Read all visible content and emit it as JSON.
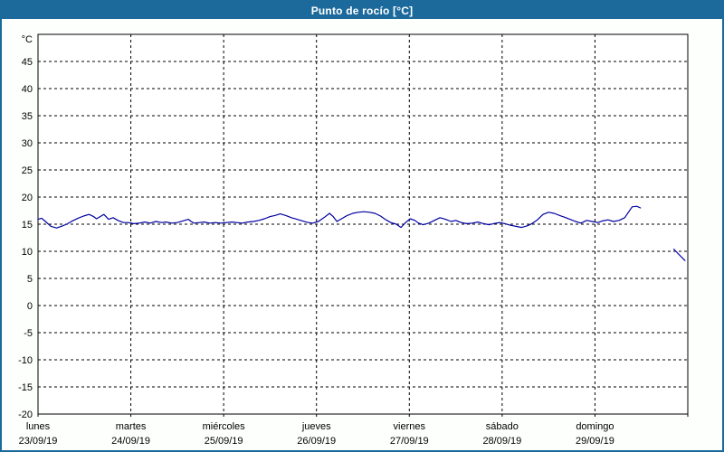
{
  "header": {
    "title": "Punto de rocío [°C]"
  },
  "colors": {
    "header_bg": "#1c6a9c",
    "frame_border": "#1c6a9c",
    "panel_bg": "#fdfffc",
    "plot_bg": "#ffffff",
    "axis": "#000000",
    "grid": "#000000",
    "series_line": "#0000a0",
    "title_text": "#ffffff",
    "tick_text": "#000000"
  },
  "chart_data": {
    "type": "line",
    "title": "Punto de rocío [°C]",
    "xlabel": "",
    "ylabel": "°C",
    "y_axis_unit": "°C",
    "ylim": [
      -20,
      50
    ],
    "y_ticks": [
      -20,
      -15,
      -10,
      -5,
      0,
      5,
      10,
      15,
      20,
      25,
      30,
      35,
      40,
      45
    ],
    "grid": "dashed",
    "legend_position": "none",
    "x_axis": {
      "span_days": 7,
      "days": [
        {
          "name": "lunes",
          "date": "23/09/19"
        },
        {
          "name": "martes",
          "date": "24/09/19"
        },
        {
          "name": "miércoles",
          "date": "25/09/19"
        },
        {
          "name": "jueves",
          "date": "26/09/19"
        },
        {
          "name": "viernes",
          "date": "27/09/19"
        },
        {
          "name": "sábado",
          "date": "28/09/19"
        },
        {
          "name": "domingo",
          "date": "29/09/19"
        }
      ]
    },
    "series": [
      {
        "name": "punto de rocío",
        "color": "#0000a0",
        "unit": "°C",
        "segments": [
          [
            [
              0,
              15.9
            ],
            [
              0.04,
              16.1
            ],
            [
              0.08,
              15.5
            ],
            [
              0.14,
              14.6
            ],
            [
              0.2,
              14.3
            ],
            [
              0.25,
              14.6
            ],
            [
              0.31,
              15.0
            ],
            [
              0.37,
              15.6
            ],
            [
              0.43,
              16.1
            ],
            [
              0.49,
              16.5
            ],
            [
              0.55,
              16.8
            ],
            [
              0.6,
              16.4
            ],
            [
              0.63,
              16.0
            ],
            [
              0.67,
              16.4
            ],
            [
              0.71,
              16.8
            ],
            [
              0.76,
              15.9
            ],
            [
              0.81,
              16.2
            ],
            [
              0.86,
              15.7
            ],
            [
              0.92,
              15.3
            ],
            [
              0.97,
              15.3
            ],
            [
              1.03,
              15.1
            ],
            [
              1.09,
              15.2
            ],
            [
              1.15,
              15.4
            ],
            [
              1.21,
              15.2
            ],
            [
              1.27,
              15.5
            ],
            [
              1.33,
              15.3
            ],
            [
              1.38,
              15.4
            ],
            [
              1.44,
              15.2
            ],
            [
              1.5,
              15.3
            ],
            [
              1.56,
              15.6
            ],
            [
              1.62,
              15.9
            ],
            [
              1.65,
              15.5
            ],
            [
              1.68,
              15.2
            ],
            [
              1.74,
              15.3
            ],
            [
              1.79,
              15.4
            ],
            [
              1.85,
              15.2
            ],
            [
              1.91,
              15.3
            ],
            [
              1.97,
              15.2
            ],
            [
              2.03,
              15.3
            ],
            [
              2.09,
              15.4
            ],
            [
              2.14,
              15.3
            ],
            [
              2.2,
              15.2
            ],
            [
              2.26,
              15.4
            ],
            [
              2.32,
              15.5
            ],
            [
              2.38,
              15.7
            ],
            [
              2.44,
              16.0
            ],
            [
              2.5,
              16.4
            ],
            [
              2.55,
              16.6
            ],
            [
              2.61,
              16.9
            ],
            [
              2.67,
              16.6
            ],
            [
              2.73,
              16.2
            ],
            [
              2.79,
              15.9
            ],
            [
              2.85,
              15.6
            ],
            [
              2.91,
              15.3
            ],
            [
              2.96,
              15.2
            ],
            [
              3.02,
              15.5
            ],
            [
              3.08,
              16.2
            ],
            [
              3.14,
              17.0
            ],
            [
              3.18,
              16.4
            ],
            [
              3.22,
              15.5
            ],
            [
              3.28,
              16.1
            ],
            [
              3.33,
              16.6
            ],
            [
              3.39,
              17.0
            ],
            [
              3.45,
              17.2
            ],
            [
              3.51,
              17.3
            ],
            [
              3.57,
              17.2
            ],
            [
              3.63,
              17.0
            ],
            [
              3.69,
              16.5
            ],
            [
              3.74,
              15.9
            ],
            [
              3.8,
              15.3
            ],
            [
              3.86,
              15.0
            ],
            [
              3.91,
              14.4
            ],
            [
              3.96,
              15.3
            ],
            [
              4.01,
              16.0
            ],
            [
              4.06,
              15.7
            ],
            [
              4.1,
              15.2
            ],
            [
              4.15,
              14.9
            ],
            [
              4.21,
              15.2
            ],
            [
              4.27,
              15.7
            ],
            [
              4.33,
              16.2
            ],
            [
              4.39,
              15.9
            ],
            [
              4.45,
              15.5
            ],
            [
              4.5,
              15.7
            ],
            [
              4.56,
              15.3
            ],
            [
              4.62,
              15.1
            ],
            [
              4.68,
              15.2
            ],
            [
              4.74,
              15.4
            ],
            [
              4.8,
              15.1
            ],
            [
              4.86,
              14.9
            ],
            [
              4.91,
              15.1
            ],
            [
              4.97,
              15.3
            ],
            [
              5.03,
              15.1
            ],
            [
              5.09,
              14.8
            ],
            [
              5.15,
              14.6
            ],
            [
              5.21,
              14.4
            ],
            [
              5.27,
              14.7
            ],
            [
              5.32,
              15.1
            ],
            [
              5.38,
              15.8
            ],
            [
              5.44,
              16.8
            ],
            [
              5.5,
              17.2
            ],
            [
              5.56,
              17.0
            ],
            [
              5.62,
              16.6
            ],
            [
              5.67,
              16.3
            ],
            [
              5.73,
              15.9
            ],
            [
              5.79,
              15.5
            ],
            [
              5.85,
              15.2
            ],
            [
              5.91,
              15.7
            ],
            [
              5.97,
              15.5
            ],
            [
              6.03,
              15.3
            ],
            [
              6.08,
              15.6
            ],
            [
              6.14,
              15.8
            ],
            [
              6.2,
              15.5
            ],
            [
              6.26,
              15.7
            ],
            [
              6.32,
              16.2
            ],
            [
              6.36,
              17.2
            ],
            [
              6.4,
              18.2
            ],
            [
              6.45,
              18.3
            ],
            [
              6.49,
              18.0
            ]
          ],
          [
            [
              6.85,
              10.4
            ],
            [
              6.9,
              9.5
            ],
            [
              6.97,
              8.3
            ]
          ]
        ]
      }
    ]
  }
}
